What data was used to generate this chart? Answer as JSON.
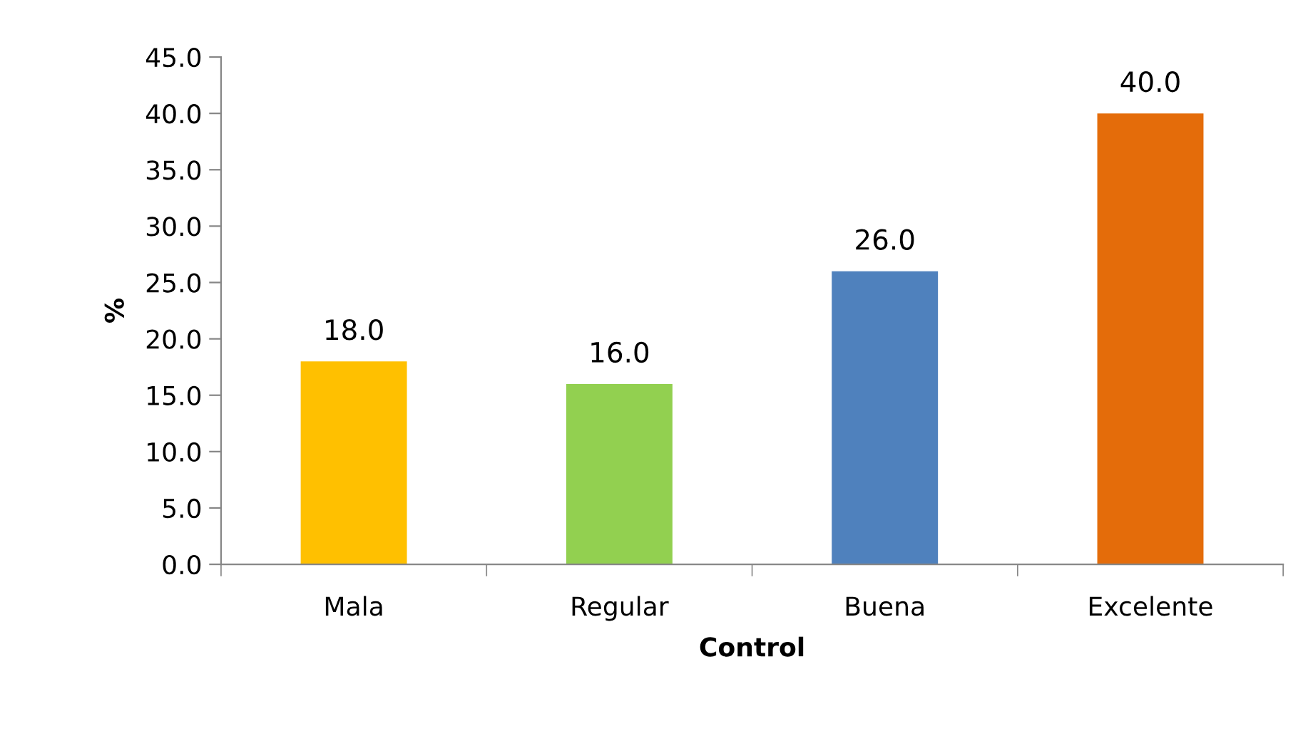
{
  "chart_data": {
    "type": "bar",
    "xlabel": "Control",
    "ylabel": "%",
    "categories": [
      "Mala",
      "Regular",
      "Buena",
      "Excelente"
    ],
    "values": [
      18.0,
      16.0,
      26.0,
      40.0
    ],
    "colors": [
      "#ffc000",
      "#92d050",
      "#4f81bd",
      "#e46c0a"
    ],
    "value_labels": [
      "18.0",
      "16.0",
      "26.0",
      "40.0"
    ],
    "ylim": [
      0,
      45
    ],
    "yticks": [
      {
        "value": 0,
        "label": "0.0"
      },
      {
        "value": 5,
        "label": "5.0"
      },
      {
        "value": 10,
        "label": "10.0"
      },
      {
        "value": 15,
        "label": "15.0"
      },
      {
        "value": 20,
        "label": "20.0"
      },
      {
        "value": 25,
        "label": "25.0"
      },
      {
        "value": 30,
        "label": "30.0"
      },
      {
        "value": 35,
        "label": "35.0"
      },
      {
        "value": 40,
        "label": "40.0"
      },
      {
        "value": 45,
        "label": "45.0"
      }
    ],
    "grid": false
  }
}
